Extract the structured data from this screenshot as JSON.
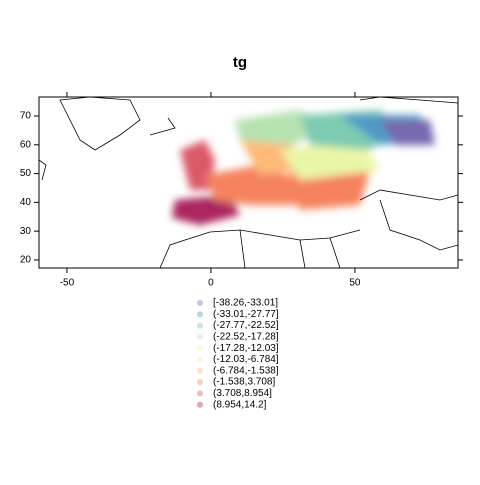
{
  "chart_data": {
    "type": "map",
    "title": "tg",
    "xlim": [
      -59.7,
      85.8
    ],
    "ylim": [
      17.2,
      76.6
    ],
    "xticks": [
      -50,
      0,
      50
    ],
    "yticks": [
      20,
      30,
      40,
      50,
      60,
      70
    ],
    "legend": [
      {
        "label": "[-38.26,-33.01]",
        "color": "#5e4fa2"
      },
      {
        "label": "(-33.01,-27.77]",
        "color": "#3288bd"
      },
      {
        "label": "(-27.77,-22.52]",
        "color": "#66c2a5"
      },
      {
        "label": "(-22.52,-17.28]",
        "color": "#abdda4"
      },
      {
        "label": "(-17.28,-12.03]",
        "color": "#e6f598"
      },
      {
        "label": "(-12.03,-6.784]",
        "color": "#fee08b"
      },
      {
        "label": "(-6.784,-1.538]",
        "color": "#fdae61"
      },
      {
        "label": "(-1.538,3.708]",
        "color": "#f46d43"
      },
      {
        "label": "(3.708,8.954]",
        "color": "#d53e4f"
      },
      {
        "label": "(8.954,14.2]",
        "color": "#9e0142"
      }
    ]
  }
}
